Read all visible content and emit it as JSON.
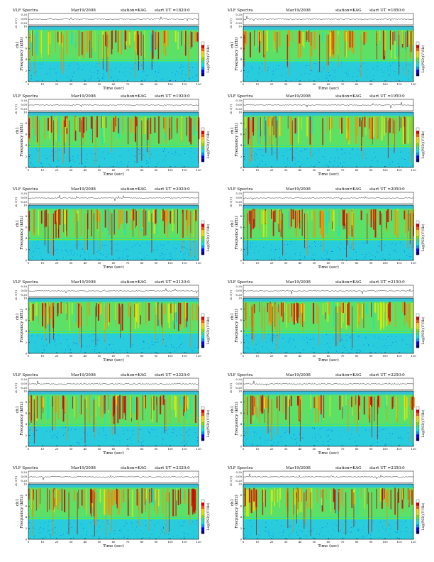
{
  "chart_data": [
    {
      "type": "heatmap",
      "header": {
        "title": "VLF Spectra",
        "date": "Mar19/2008",
        "station": "station=KAG",
        "start": "start  UT  =1820:0"
      },
      "trace_label": "ch 1(V)",
      "trace_ticks": [
        "0.20",
        "0.00",
        "-0.20"
      ],
      "yaxis_label_top": "ch1",
      "ylabel": "Frequency  (kHz)",
      "xlabel": "Time  (sec)",
      "xticks": [
        0,
        10,
        20,
        30,
        40,
        50,
        60,
        70,
        80,
        90,
        100,
        110,
        120
      ],
      "yticks": [
        0,
        2,
        4,
        6,
        8,
        10
      ],
      "xlim": [
        0,
        120
      ],
      "ylim": [
        0,
        10
      ],
      "colorbar_label": "Log(PSD)(V²/Hz)"
    },
    {
      "type": "heatmap",
      "header": {
        "title": "VLF Spectra",
        "date": "Mar19/2008",
        "station": "station=KAG",
        "start": "start  UT  =1850:0"
      },
      "trace_label": "ch 1(V)",
      "trace_ticks": [
        "0.20",
        "0.00",
        "-0.20"
      ],
      "yaxis_label_top": "ch1",
      "ylabel": "Frequency  (kHz)",
      "xlabel": "Time  (sec)",
      "xticks": [
        0,
        10,
        20,
        30,
        40,
        50,
        60,
        70,
        80,
        90,
        100,
        110,
        120
      ],
      "yticks": [
        0,
        2,
        4,
        6,
        8,
        10
      ],
      "xlim": [
        0,
        120
      ],
      "ylim": [
        0,
        10
      ],
      "colorbar_label": "Log(PSD)(V²/Hz)"
    },
    {
      "type": "heatmap",
      "header": {
        "title": "VLF Spectra",
        "date": "Mar19/2008",
        "station": "station=KAG",
        "start": "start  UT  =1920:0"
      },
      "trace_label": "ch 1(V)",
      "trace_ticks": [
        "0.20",
        "0.00",
        "-0.20"
      ],
      "yaxis_label_top": "ch1",
      "ylabel": "Frequency  (kHz)",
      "xlabel": "Time  (sec)",
      "xticks": [
        0,
        10,
        20,
        30,
        40,
        50,
        60,
        70,
        80,
        90,
        100,
        110,
        120
      ],
      "yticks": [
        0,
        2,
        4,
        6,
        8,
        10
      ],
      "xlim": [
        0,
        120
      ],
      "ylim": [
        0,
        10
      ],
      "colorbar_label": "Log(PSD)(V²/Hz)"
    },
    {
      "type": "heatmap",
      "header": {
        "title": "VLF Spectra",
        "date": "Mar19/2008",
        "station": "station=KAG",
        "start": "start  UT  =1950:0"
      },
      "trace_label": "ch 1(V)",
      "trace_ticks": [
        "0.20",
        "0.00",
        "-0.20"
      ],
      "yaxis_label_top": "ch1",
      "ylabel": "Frequency  (kHz)",
      "xlabel": "Time  (sec)",
      "xticks": [
        0,
        10,
        20,
        30,
        40,
        50,
        60,
        70,
        80,
        90,
        100,
        110,
        120
      ],
      "yticks": [
        0,
        2,
        4,
        6,
        8,
        10
      ],
      "xlim": [
        0,
        120
      ],
      "ylim": [
        0,
        10
      ],
      "colorbar_label": "Log(PSD)(V²/Hz)"
    },
    {
      "type": "heatmap",
      "header": {
        "title": "VLF Spectra",
        "date": "Mar19/2008",
        "station": "station=KAG",
        "start": "start  UT  =2020:0"
      },
      "trace_label": "ch 1(V)",
      "trace_ticks": [
        "0.20",
        "0.00",
        "-0.20"
      ],
      "yaxis_label_top": "ch1",
      "ylabel": "Frequency  (kHz)",
      "xlabel": "Time  (sec)",
      "xticks": [
        0,
        10,
        20,
        30,
        40,
        50,
        60,
        70,
        80,
        90,
        100,
        110,
        120
      ],
      "yticks": [
        0,
        2,
        4,
        6,
        8,
        10
      ],
      "xlim": [
        0,
        120
      ],
      "ylim": [
        0,
        10
      ],
      "colorbar_label": "Log(PSD)(V²/Hz)"
    },
    {
      "type": "heatmap",
      "header": {
        "title": "VLF Spectra",
        "date": "Mar19/2008",
        "station": "station=KAG",
        "start": "start  UT  =2050:0"
      },
      "trace_label": "ch 1(V)",
      "trace_ticks": [
        "0.20",
        "0.00",
        "-0.20"
      ],
      "yaxis_label_top": "ch1",
      "ylabel": "Frequency  (kHz)",
      "xlabel": "Time  (sec)",
      "xticks": [
        0,
        10,
        20,
        30,
        40,
        50,
        60,
        70,
        80,
        90,
        100,
        110,
        120
      ],
      "yticks": [
        0,
        2,
        4,
        6,
        8,
        10
      ],
      "xlim": [
        0,
        120
      ],
      "ylim": [
        0,
        10
      ],
      "colorbar_label": "Log(PSD)(V²/Hz)"
    },
    {
      "type": "heatmap",
      "header": {
        "title": "VLF Spectra",
        "date": "Mar19/2008",
        "station": "station=KAG",
        "start": "start  UT  =2120:0"
      },
      "trace_label": "ch 1(V)",
      "trace_ticks": [
        "0.20",
        "0.00",
        "-0.20"
      ],
      "yaxis_label_top": "ch1",
      "ylabel": "Frequency  (kHz)",
      "xlabel": "Time  (sec)",
      "xticks": [
        0,
        10,
        20,
        30,
        40,
        50,
        60,
        70,
        80,
        90,
        100,
        110,
        120
      ],
      "yticks": [
        0,
        2,
        4,
        6,
        8,
        10
      ],
      "xlim": [
        0,
        120
      ],
      "ylim": [
        0,
        10
      ],
      "colorbar_label": "Log(PSD)(V²/Hz)"
    },
    {
      "type": "heatmap",
      "header": {
        "title": "VLF Spectra",
        "date": "Mar19/2008",
        "station": "station=KAG",
        "start": "start  UT  =2150:0"
      },
      "trace_label": "ch 1(V)",
      "trace_ticks": [
        "0.20",
        "0.00",
        "-0.20"
      ],
      "yaxis_label_top": "ch1",
      "ylabel": "Frequency  (kHz)",
      "xlabel": "Time  (sec)",
      "xticks": [
        0,
        10,
        20,
        30,
        40,
        50,
        60,
        70,
        80,
        90,
        100,
        110,
        120
      ],
      "yticks": [
        0,
        2,
        4,
        6,
        8,
        10
      ],
      "xlim": [
        0,
        120
      ],
      "ylim": [
        0,
        10
      ],
      "colorbar_label": "Log(PSD)(V²/Hz)"
    },
    {
      "type": "heatmap",
      "header": {
        "title": "VLF Spectra",
        "date": "Mar19/2008",
        "station": "station=KAG",
        "start": "start  UT  =2220:0"
      },
      "trace_label": "ch 1(V)",
      "trace_ticks": [
        "0.20",
        "0.00",
        "-0.20"
      ],
      "yaxis_label_top": "ch1",
      "ylabel": "Frequency  (kHz)",
      "xlabel": "Time  (sec)",
      "xticks": [
        0,
        10,
        20,
        30,
        40,
        50,
        60,
        70,
        80,
        90,
        100,
        110,
        120
      ],
      "yticks": [
        0,
        2,
        4,
        6,
        8,
        10
      ],
      "xlim": [
        0,
        120
      ],
      "ylim": [
        0,
        10
      ],
      "colorbar_label": "Log(PSD)(V²/Hz)"
    },
    {
      "type": "heatmap",
      "header": {
        "title": "VLF Spectra",
        "date": "Mar19/2008",
        "station": "station=KAG",
        "start": "start  UT  =2250:0"
      },
      "trace_label": "ch 1(V)",
      "trace_ticks": [
        "0.20",
        "0.00",
        "-0.20"
      ],
      "yaxis_label_top": "ch1",
      "ylabel": "Frequency  (kHz)",
      "xlabel": "Time  (sec)",
      "xticks": [
        0,
        10,
        20,
        30,
        40,
        50,
        60,
        70,
        80,
        90,
        100,
        110,
        120
      ],
      "yticks": [
        0,
        2,
        4,
        6,
        8,
        10
      ],
      "xlim": [
        0,
        120
      ],
      "ylim": [
        0,
        10
      ],
      "colorbar_label": "Log(PSD)(V²/Hz)"
    },
    {
      "type": "heatmap",
      "header": {
        "title": "VLF Spectra",
        "date": "Mar19/2008",
        "station": "station=KAG",
        "start": "start  UT  =2320:0"
      },
      "trace_label": "ch 1(V)",
      "trace_ticks": [
        "0.20",
        "0.00",
        "-0.20"
      ],
      "yaxis_label_top": "ch1",
      "ylabel": "Frequency  (kHz)",
      "xlabel": "Time  (sec)",
      "xticks": [
        0,
        10,
        20,
        30,
        40,
        50,
        60,
        70,
        80,
        90,
        100,
        110,
        120
      ],
      "yticks": [
        0,
        2,
        4,
        6,
        8,
        10
      ],
      "xlim": [
        0,
        120
      ],
      "ylim": [
        0,
        10
      ],
      "colorbar_label": "Log(PSD)(V²/Hz)"
    },
    {
      "type": "heatmap",
      "header": {
        "title": "VLF Spectra",
        "date": "Mar19/2008",
        "station": "station=KAG",
        "start": "start  UT  =2350:0"
      },
      "trace_label": "ch 1(V)",
      "trace_ticks": [
        "0.20",
        "0.00",
        "-0.20"
      ],
      "yaxis_label_top": "ch1",
      "ylabel": "Frequency  (kHz)",
      "xlabel": "Time  (sec)",
      "xticks": [
        0,
        10,
        20,
        30,
        40,
        50,
        60,
        70,
        80,
        90,
        100,
        110,
        120
      ],
      "yticks": [
        0,
        2,
        4,
        6,
        8,
        10
      ],
      "xlim": [
        0,
        120
      ],
      "ylim": [
        0,
        10
      ],
      "colorbar_label": "Log(PSD)(V²/Hz)"
    }
  ],
  "colorbar_colors": [
    "#00007a",
    "#0000ff",
    "#0096ff",
    "#00e6e6",
    "#2fe08a",
    "#7ae000",
    "#d8e800",
    "#ffd000",
    "#ff5a00",
    "#d60000",
    "#ffffff"
  ]
}
